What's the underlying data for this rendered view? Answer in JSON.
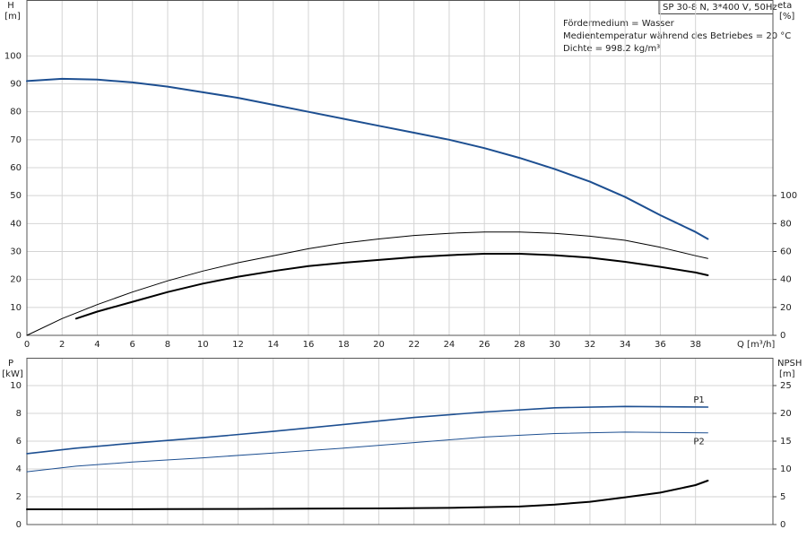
{
  "chart_data": [
    {
      "type": "line",
      "title": "SP 30-8 N, 3*400 V, 50Hz",
      "notes": [
        "Fördermedium = Wasser",
        "Medientemperatur während des Betriebes = 20 °C",
        "Dichte = 998.2 kg/m³"
      ],
      "y_label": "H",
      "y_unit": "[m]",
      "y2_label": "eta",
      "y2_unit": "[%]",
      "x_label": "Q [m³/h]",
      "xlim": [
        0,
        42.4
      ],
      "xticks": [
        0,
        2,
        4,
        6,
        8,
        10,
        12,
        14,
        16,
        18,
        20,
        22,
        24,
        26,
        28,
        30,
        32,
        34,
        36,
        38
      ],
      "ylim": [
        0,
        120
      ],
      "yticks": [
        0,
        10,
        20,
        30,
        40,
        50,
        60,
        70,
        80,
        90,
        100
      ],
      "y2lim": [
        0,
        240
      ],
      "y2ticks": [
        0,
        20,
        40,
        60,
        80,
        100
      ],
      "grid": true,
      "series": [
        {
          "color": "#1d4f91",
          "line_width": 2,
          "x": [
            0,
            2,
            4,
            6,
            8,
            10,
            12,
            14,
            16,
            18,
            20,
            22,
            24,
            26,
            28,
            30,
            32,
            34,
            36,
            38,
            38.7
          ],
          "values": [
            91,
            91.8,
            91.5,
            90.5,
            89,
            87,
            85,
            82.5,
            80,
            77.5,
            75,
            72.5,
            70,
            67,
            63.5,
            59.5,
            55,
            49.5,
            43,
            37,
            34.5
          ]
        },
        {
          "color": "#000000",
          "line_width": 1,
          "axis": "y2",
          "x": [
            0,
            2,
            4,
            6,
            8,
            10,
            12,
            14,
            16,
            18,
            20,
            22,
            24,
            26,
            28,
            30,
            32,
            34,
            36,
            38,
            38.7
          ],
          "values": [
            0,
            12,
            22,
            31,
            39,
            46,
            52,
            57,
            62,
            66,
            69,
            71.5,
            73,
            74,
            74,
            73,
            71,
            68,
            63,
            57,
            55
          ]
        },
        {
          "color": "#000000",
          "line_width": 2,
          "axis": "y2",
          "x": [
            2.8,
            4,
            6,
            8,
            10,
            12,
            14,
            16,
            18,
            20,
            22,
            24,
            26,
            28,
            30,
            32,
            34,
            36,
            38,
            38.7
          ],
          "values": [
            12,
            17,
            24,
            31,
            37,
            42,
            46,
            49.6,
            52,
            54,
            56,
            57.4,
            58.4,
            58.4,
            57.4,
            55.6,
            52.6,
            49,
            45,
            43
          ]
        }
      ]
    },
    {
      "type": "line",
      "y_label": "P",
      "y_unit": "[kW]",
      "y2_label": "NPSH",
      "y2_unit": "[m]",
      "xlim": [
        0,
        42.4
      ],
      "ylim": [
        0,
        12
      ],
      "yticks": [
        0,
        2,
        4,
        6,
        8,
        10
      ],
      "y2lim": [
        0,
        30
      ],
      "y2ticks": [
        0,
        5,
        10,
        15,
        20,
        25
      ],
      "grid": true,
      "series": [
        {
          "name": "P1",
          "color": "#1d4f91",
          "line_width": 1.6,
          "x": [
            0,
            2.8,
            6,
            10,
            14,
            18,
            22,
            26,
            30,
            34,
            38.7
          ],
          "values": [
            5.1,
            5.5,
            5.85,
            6.25,
            6.7,
            7.2,
            7.7,
            8.1,
            8.4,
            8.5,
            8.45
          ]
        },
        {
          "name": "P2",
          "color": "#1d4f91",
          "line_width": 1,
          "x": [
            0,
            2.8,
            6,
            10,
            14,
            18,
            22,
            26,
            30,
            34,
            38.7
          ],
          "values": [
            3.8,
            4.2,
            4.5,
            4.8,
            5.15,
            5.5,
            5.9,
            6.3,
            6.55,
            6.65,
            6.6
          ]
        },
        {
          "color": "#000000",
          "line_width": 2,
          "axis": "y2",
          "x": [
            0,
            4,
            8,
            12,
            16,
            20,
            24,
            28,
            30,
            32,
            34,
            36,
            38,
            38.7
          ],
          "values": [
            2.75,
            2.75,
            2.78,
            2.8,
            2.85,
            2.9,
            3,
            3.25,
            3.6,
            4.1,
            4.9,
            5.75,
            7.1,
            7.9
          ]
        }
      ]
    }
  ]
}
